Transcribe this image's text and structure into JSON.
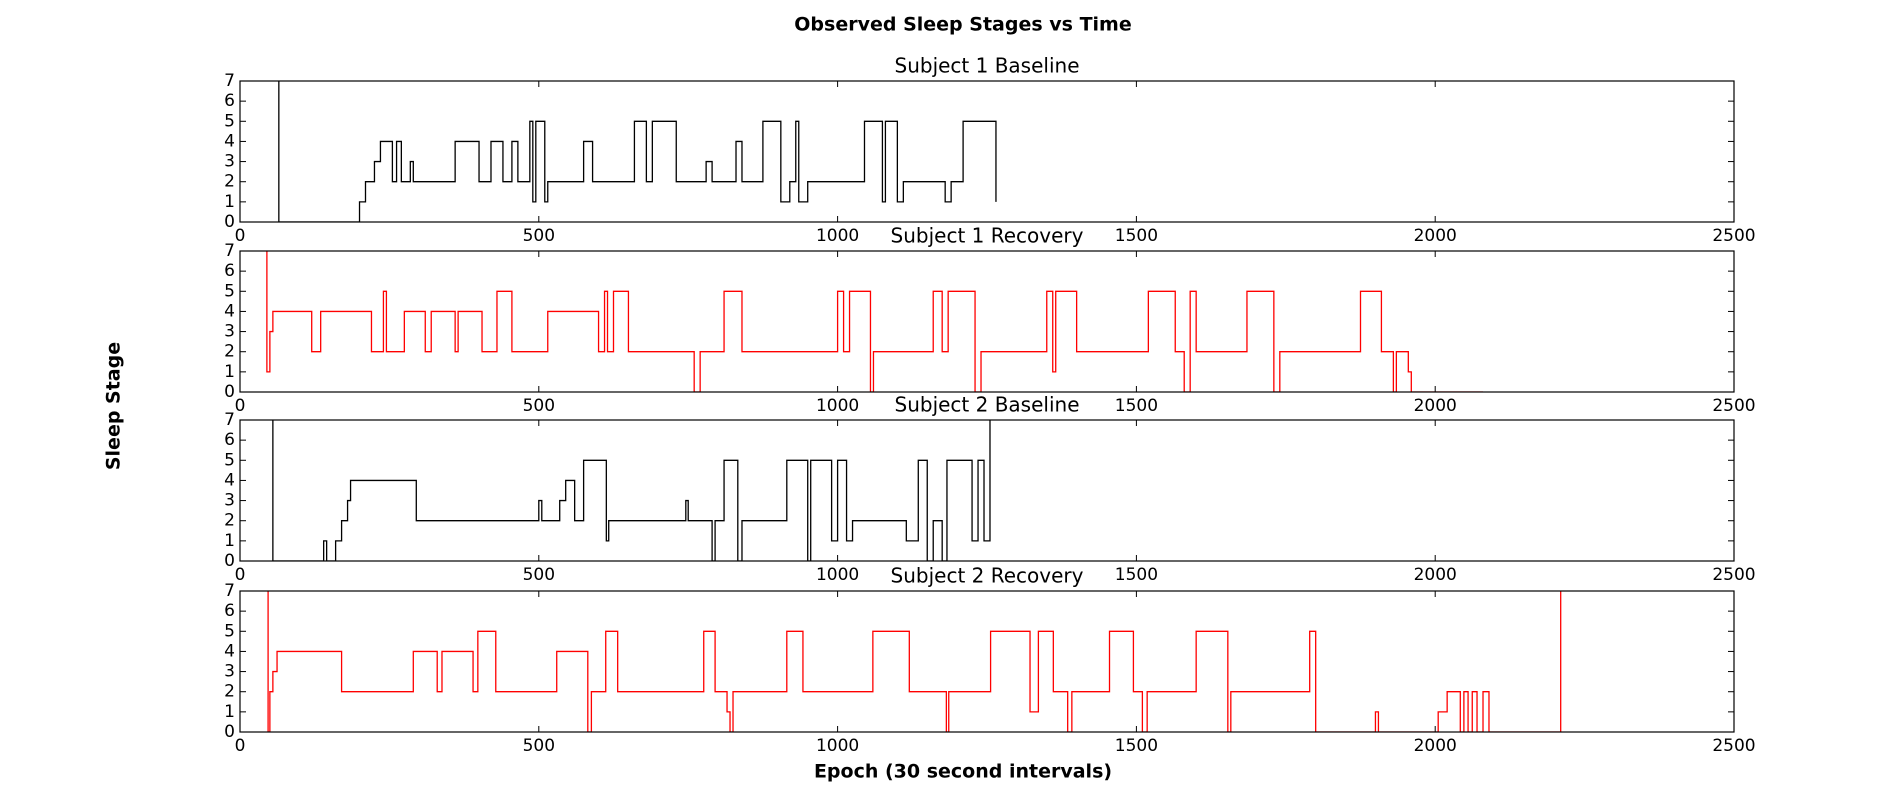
{
  "title": "Observed Sleep Stages vs Time",
  "x_label": "Epoch (30 second intervals)",
  "y_label": "Sleep Stage",
  "chart_data": [
    {
      "type": "line",
      "title": "Subject 1 Baseline",
      "color": "#000000",
      "xlim": [
        0,
        2500
      ],
      "xticks": [
        0,
        500,
        1000,
        1500,
        2000,
        2500
      ],
      "ylim": [
        0,
        7
      ],
      "yticks": [
        0,
        1,
        2,
        3,
        4,
        5,
        6,
        7
      ],
      "x": [
        65,
        65,
        200,
        200,
        210,
        210,
        225,
        225,
        235,
        235,
        255,
        255,
        262,
        262,
        270,
        270,
        285,
        285,
        290,
        290,
        360,
        360,
        400,
        400,
        420,
        420,
        440,
        440,
        455,
        455,
        465,
        465,
        485,
        485,
        490,
        490,
        495,
        495,
        510,
        510,
        515,
        515,
        575,
        575,
        590,
        590,
        660,
        660,
        680,
        680,
        690,
        690,
        730,
        730,
        780,
        780,
        790,
        790,
        830,
        830,
        840,
        840,
        875,
        875,
        905,
        905,
        920,
        920,
        930,
        930,
        935,
        935,
        950,
        950,
        1045,
        1045,
        1075,
        1075,
        1080,
        1080,
        1100,
        1100,
        1110,
        1110,
        1180,
        1180,
        1190,
        1190,
        1210,
        1210,
        1265,
        1265
      ],
      "values": [
        7,
        0,
        0,
        1,
        1,
        2,
        2,
        3,
        3,
        4,
        4,
        2,
        2,
        4,
        4,
        2,
        2,
        3,
        3,
        2,
        2,
        4,
        4,
        2,
        2,
        4,
        4,
        2,
        2,
        4,
        4,
        2,
        2,
        5,
        5,
        1,
        1,
        5,
        5,
        1,
        1,
        2,
        2,
        4,
        4,
        2,
        2,
        5,
        5,
        2,
        2,
        5,
        5,
        2,
        2,
        3,
        3,
        2,
        2,
        4,
        4,
        2,
        2,
        5,
        5,
        1,
        1,
        2,
        2,
        5,
        5,
        1,
        1,
        2,
        2,
        5,
        5,
        1,
        1,
        5,
        5,
        1,
        1,
        2,
        2,
        1,
        1,
        2,
        2,
        5,
        5,
        1
      ]
    },
    {
      "type": "line",
      "title": "Subject 1 Recovery",
      "color": "#ff0000",
      "xlim": [
        0,
        2500
      ],
      "xticks": [
        0,
        500,
        1000,
        1500,
        2000,
        2500
      ],
      "ylim": [
        0,
        7
      ],
      "yticks": [
        0,
        1,
        2,
        3,
        4,
        5,
        6,
        7
      ],
      "x": [
        45,
        45,
        50,
        50,
        55,
        55,
        120,
        120,
        135,
        135,
        220,
        220,
        240,
        240,
        245,
        245,
        275,
        275,
        310,
        310,
        320,
        320,
        360,
        360,
        365,
        365,
        405,
        405,
        430,
        430,
        455,
        455,
        515,
        515,
        600,
        600,
        610,
        610,
        615,
        615,
        625,
        625,
        650,
        650,
        760,
        760,
        770,
        770,
        810,
        810,
        840,
        840,
        1000,
        1000,
        1010,
        1010,
        1020,
        1020,
        1055,
        1055,
        1060,
        1060,
        1160,
        1160,
        1175,
        1175,
        1185,
        1185,
        1230,
        1230,
        1240,
        1240,
        1350,
        1350,
        1360,
        1360,
        1365,
        1365,
        1400,
        1400,
        1520,
        1520,
        1565,
        1565,
        1580,
        1580,
        1590,
        1590,
        1600,
        1600,
        1685,
        1685,
        1730,
        1730,
        1740,
        1740,
        1875,
        1875,
        1910,
        1910,
        1930,
        1930,
        1935,
        1935,
        1955,
        1955,
        1960,
        1960,
        2080
      ],
      "values": [
        7,
        1,
        1,
        3,
        3,
        4,
        4,
        2,
        2,
        4,
        4,
        2,
        2,
        5,
        5,
        2,
        2,
        4,
        4,
        2,
        2,
        4,
        4,
        2,
        2,
        4,
        4,
        2,
        2,
        5,
        5,
        2,
        2,
        4,
        4,
        2,
        2,
        5,
        5,
        2,
        2,
        5,
        5,
        2,
        2,
        0,
        0,
        2,
        2,
        5,
        5,
        2,
        2,
        5,
        5,
        2,
        2,
        5,
        5,
        0,
        0,
        2,
        2,
        5,
        5,
        2,
        2,
        5,
        5,
        0,
        0,
        2,
        2,
        5,
        5,
        1,
        1,
        5,
        5,
        2,
        2,
        5,
        5,
        2,
        2,
        0,
        0,
        5,
        5,
        2,
        2,
        5,
        5,
        0,
        0,
        2,
        2,
        5,
        5,
        2,
        2,
        0,
        0,
        2,
        2,
        1,
        1,
        0,
        0
      ]
    },
    {
      "type": "line",
      "title": "Subject 2 Baseline",
      "color": "#000000",
      "xlim": [
        0,
        2500
      ],
      "xticks": [
        0,
        500,
        1000,
        1500,
        2000,
        2500
      ],
      "ylim": [
        0,
        7
      ],
      "yticks": [
        0,
        1,
        2,
        3,
        4,
        5,
        6,
        7
      ],
      "x": [
        55,
        55,
        140,
        140,
        145,
        145,
        160,
        160,
        170,
        170,
        180,
        180,
        185,
        185,
        295,
        295,
        500,
        500,
        505,
        505,
        535,
        535,
        545,
        545,
        560,
        560,
        575,
        575,
        613,
        613,
        617,
        617,
        746,
        746,
        750,
        750,
        790,
        790,
        795,
        795,
        810,
        810,
        833,
        833,
        840,
        840,
        915,
        915,
        950,
        950,
        955,
        955,
        990,
        990,
        1000,
        1000,
        1015,
        1015,
        1025,
        1025,
        1115,
        1115,
        1135,
        1135,
        1150,
        1150,
        1160,
        1160,
        1175,
        1175,
        1183,
        1183,
        1225,
        1225,
        1235,
        1235,
        1245,
        1245,
        1255,
        1255
      ],
      "values": [
        7,
        0,
        0,
        1,
        1,
        0,
        0,
        1,
        1,
        2,
        2,
        3,
        3,
        4,
        4,
        2,
        2,
        3,
        3,
        2,
        2,
        3,
        3,
        4,
        4,
        2,
        2,
        5,
        5,
        1,
        1,
        2,
        2,
        3,
        3,
        2,
        2,
        0,
        0,
        2,
        2,
        5,
        5,
        0,
        0,
        2,
        2,
        5,
        5,
        0,
        0,
        5,
        5,
        1,
        1,
        5,
        5,
        1,
        1,
        2,
        2,
        1,
        1,
        5,
        5,
        0,
        0,
        2,
        2,
        0,
        0,
        5,
        5,
        1,
        1,
        5,
        5,
        1,
        1,
        7
      ]
    },
    {
      "type": "line",
      "title": "Subject 2 Recovery",
      "color": "#ff0000",
      "xlim": [
        0,
        2500
      ],
      "xticks": [
        0,
        500,
        1000,
        1500,
        2000,
        2500
      ],
      "ylim": [
        0,
        7
      ],
      "yticks": [
        0,
        1,
        2,
        3,
        4,
        5,
        6,
        7
      ],
      "x": [
        47,
        47,
        50,
        50,
        55,
        55,
        62,
        62,
        170,
        170,
        290,
        290,
        330,
        330,
        338,
        338,
        390,
        390,
        398,
        398,
        428,
        428,
        530,
        530,
        582,
        582,
        588,
        588,
        612,
        612,
        632,
        632,
        776,
        776,
        795,
        795,
        815,
        815,
        820,
        820,
        825,
        825,
        915,
        915,
        942,
        942,
        1059,
        1059,
        1120,
        1120,
        1182,
        1182,
        1186,
        1186,
        1256,
        1256,
        1322,
        1322,
        1336,
        1336,
        1361,
        1361,
        1385,
        1385,
        1392,
        1392,
        1455,
        1455,
        1495,
        1495,
        1510,
        1510,
        1518,
        1518,
        1600,
        1600,
        1653,
        1653,
        1658,
        1658,
        1790,
        1790,
        1800,
        1800,
        1900,
        1900,
        1905,
        1905,
        2005,
        2005,
        2020,
        2020,
        2042,
        2042,
        2048,
        2048,
        2055,
        2055,
        2062,
        2062,
        2070,
        2070,
        2080,
        2080,
        2090,
        2090,
        2210,
        2210
      ],
      "values": [
        7,
        0,
        0,
        2,
        2,
        3,
        3,
        4,
        4,
        2,
        2,
        4,
        4,
        2,
        2,
        4,
        4,
        2,
        2,
        5,
        5,
        2,
        2,
        4,
        4,
        0,
        0,
        2,
        2,
        5,
        5,
        2,
        2,
        5,
        5,
        2,
        2,
        1,
        1,
        0,
        0,
        2,
        2,
        5,
        5,
        2,
        2,
        5,
        5,
        2,
        2,
        0,
        0,
        2,
        2,
        5,
        5,
        1,
        1,
        5,
        5,
        2,
        2,
        0,
        0,
        2,
        2,
        5,
        5,
        2,
        2,
        0,
        0,
        2,
        2,
        5,
        5,
        0,
        0,
        2,
        2,
        5,
        5,
        0,
        0,
        1,
        1,
        0,
        0,
        1,
        1,
        2,
        2,
        0,
        0,
        2,
        2,
        0,
        0,
        2,
        2,
        0,
        0,
        2,
        2,
        0,
        0,
        7
      ]
    }
  ]
}
